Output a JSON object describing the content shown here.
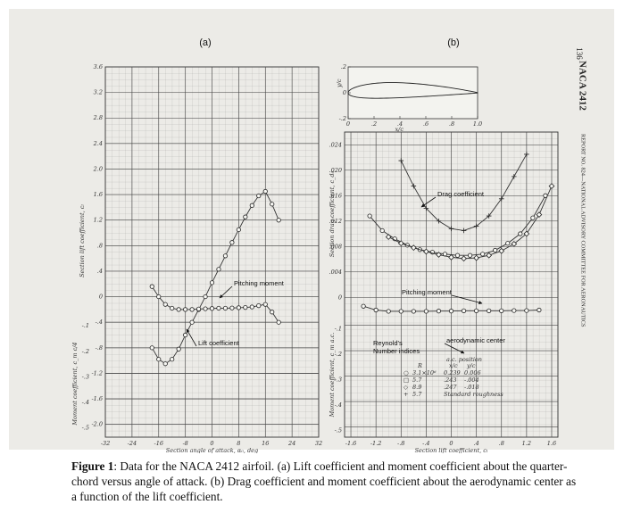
{
  "page": {
    "number": "136",
    "header": "NACA 2412",
    "running_head": "REPORT NO. 824—NATIONAL ADVISORY COMMITTEE FOR AERONAUTICS"
  },
  "caption": {
    "label": "Figure 1",
    "text": ": Data for the NACA 2412 airfoil. (a) Lift coefficient and moment coefficient about the quarter-chord versus angle of attack. (b) Drag coefficient and moment coefficient about the aerodynamic center as a function of the lift coefficient."
  },
  "chart_data": [
    {
      "type": "line",
      "label": "(a)",
      "x_label": "Section angle of attack, α₀, deg",
      "y_label": "Section lift coefficient, cₗ",
      "y2_label": "Moment coefficient, c_m c/4",
      "grid": true,
      "xlim": [
        -32,
        32
      ],
      "xticks": [
        -32,
        -24,
        -16,
        -8,
        0,
        8,
        16,
        24,
        32
      ],
      "ylim": [
        -2.2,
        3.6
      ],
      "yticks": [
        {
          "value": -2.0,
          "label": "-2.0"
        },
        -1.6,
        -1.2,
        {
          "value": -0.8,
          "label": "-.8"
        },
        {
          "value": -0.4,
          "label": "-.4"
        },
        0,
        {
          "value": 0.4,
          "label": ".4"
        },
        {
          "value": 0.8,
          "label": ".8"
        },
        1.2,
        1.6,
        {
          "value": 2.0,
          "label": "2.0"
        },
        2.4,
        2.8,
        3.2,
        3.6
      ],
      "y2lim": [
        -0.55,
        0.9
      ],
      "y2ticks": [
        {
          "value": -0.5,
          "label": "-.5"
        },
        {
          "value": -0.4,
          "label": "-.4"
        },
        {
          "value": -0.3,
          "label": "-.3"
        },
        {
          "value": -0.2,
          "label": "-.2"
        },
        {
          "value": -0.1,
          "label": "-.1"
        }
      ],
      "x": [
        -18,
        -16,
        -14,
        -12,
        -10,
        -8,
        -6,
        -4,
        -2,
        0,
        2,
        4,
        6,
        8,
        10,
        12,
        14,
        16,
        18,
        20
      ],
      "series": [
        {
          "color": "#333333",
          "marker": "circle",
          "values": [
            -0.8,
            -0.98,
            -1.05,
            -0.98,
            -0.82,
            -0.6,
            -0.4,
            -0.2,
            0.0,
            0.22,
            0.43,
            0.64,
            0.85,
            1.05,
            1.25,
            1.43,
            1.58,
            1.65,
            1.45,
            1.2
          ]
        },
        {
          "color": "#333333",
          "marker": "circle",
          "axis": "y2",
          "values": [
            0.04,
            0.0,
            -0.03,
            -0.045,
            -0.05,
            -0.05,
            -0.05,
            -0.048,
            -0.047,
            -0.046,
            -0.045,
            -0.045,
            -0.044,
            -0.043,
            -0.042,
            -0.04,
            -0.035,
            -0.03,
            -0.06,
            -0.1
          ]
        }
      ],
      "annotations": [
        "Pitching moment",
        "Lift coefficient"
      ]
    },
    {
      "type": "line",
      "label": "(b)",
      "x_label": "Section lift coefficient, cₗ",
      "y_label": "Section drag coefficient, c_d₀",
      "y2_label": "Moment coefficient, c_m a.c.",
      "grid": true,
      "xlim": [
        -1.7,
        1.7
      ],
      "xticks": [
        -1.6,
        -1.2,
        {
          "value": -0.8,
          "label": "-.8"
        },
        {
          "value": -0.4,
          "label": "-.4"
        },
        0,
        {
          "value": 0.4,
          "label": ".4"
        },
        {
          "value": 0.8,
          "label": ".8"
        },
        1.2,
        1.6
      ],
      "ylim": [
        -0.022,
        0.026
      ],
      "yticks": [
        0,
        {
          "value": 0.004,
          "label": ".004"
        },
        {
          "value": 0.008,
          "label": ".008"
        },
        {
          "value": 0.012,
          "label": ".012"
        },
        {
          "value": 0.016,
          "label": ".016"
        },
        {
          "value": 0.02,
          "label": ".020"
        },
        {
          "value": 0.024,
          "label": ".024"
        }
      ],
      "y2lim": [
        -0.54,
        0.66
      ],
      "y2ticks": [
        {
          "value": -0.5,
          "label": "-.5"
        },
        {
          "value": -0.4,
          "label": "-.4"
        },
        {
          "value": -0.3,
          "label": "-.3"
        },
        {
          "value": -0.2,
          "label": "-.2"
        },
        {
          "value": -0.1,
          "label": "-.1"
        }
      ],
      "series": [
        {
          "color": "#333333",
          "marker": "circle",
          "x": [
            -1.3,
            -1.1,
            -0.9,
            -0.7,
            -0.5,
            -0.3,
            -0.1,
            0.1,
            0.3,
            0.5,
            0.7,
            0.9,
            1.1,
            1.3,
            1.5
          ],
          "values": [
            0.0128,
            0.0105,
            0.0092,
            0.0082,
            0.0075,
            0.0071,
            0.0068,
            0.0066,
            0.0066,
            0.0068,
            0.0074,
            0.0085,
            0.01,
            0.0125,
            0.016
          ]
        },
        {
          "color": "#333333",
          "marker": "diamond",
          "x": [
            -1.0,
            -0.8,
            -0.6,
            -0.4,
            -0.2,
            0,
            0.2,
            0.4,
            0.6,
            0.8,
            1.0,
            1.2,
            1.4,
            1.6
          ],
          "values": [
            0.0095,
            0.0085,
            0.0078,
            0.0072,
            0.0067,
            0.0063,
            0.0061,
            0.0062,
            0.0066,
            0.0073,
            0.0084,
            0.01,
            0.013,
            0.0175
          ]
        },
        {
          "color": "#333333",
          "marker": "plus",
          "x": [
            -0.8,
            -0.6,
            -0.4,
            -0.2,
            0,
            0.2,
            0.4,
            0.6,
            0.8,
            1.0,
            1.2
          ],
          "values": [
            0.0215,
            0.0175,
            0.014,
            0.012,
            0.0108,
            0.0105,
            0.0112,
            0.0128,
            0.0155,
            0.019,
            0.0225
          ]
        },
        {
          "color": "#333333",
          "marker": "circle",
          "axis": "y2",
          "x": [
            -1.4,
            -1.2,
            -1.0,
            -0.8,
            -0.6,
            -0.4,
            -0.2,
            0,
            0.2,
            0.4,
            0.6,
            0.8,
            1.0,
            1.2,
            1.4
          ],
          "values": [
            -0.025,
            -0.04,
            -0.045,
            -0.045,
            -0.045,
            -0.045,
            -0.044,
            -0.044,
            -0.043,
            -0.043,
            -0.043,
            -0.043,
            -0.042,
            -0.042,
            -0.04
          ]
        }
      ],
      "annotations": [
        "Drag coefficient",
        "Pitching moment",
        "aerodynamic center"
      ],
      "legend": {
        "title": [
          "Reynold's",
          "Number indices"
        ],
        "headers": [
          "R",
          "a.c. position",
          "x/c",
          "y/c"
        ],
        "rows": [
          [
            "○",
            "3.1×10⁶",
            "0.239",
            "0.006"
          ],
          [
            "□",
            "5.7",
            ".243",
            "-.004"
          ],
          [
            "◇",
            "8.9",
            ".247",
            "-.018"
          ],
          [
            "+",
            "5.7",
            "Standard roughness"
          ]
        ]
      },
      "inset": {
        "x_label": "x/c",
        "y_label": "y/c",
        "xlim": [
          0,
          1
        ],
        "xticks": [
          0,
          {
            "value": 0.2,
            "label": ".2"
          },
          {
            "value": 0.4,
            "label": ".4"
          },
          {
            "value": 0.6,
            "label": ".6"
          },
          {
            "value": 0.8,
            "label": ".8"
          },
          {
            "value": 1.0,
            "label": "1.0"
          }
        ],
        "ylim": [
          -0.2,
          0.2
        ],
        "yticks": [
          {
            "value": -0.2,
            "label": "-.2"
          },
          0,
          {
            "value": 0.2,
            "label": ".2"
          }
        ]
      }
    }
  ]
}
